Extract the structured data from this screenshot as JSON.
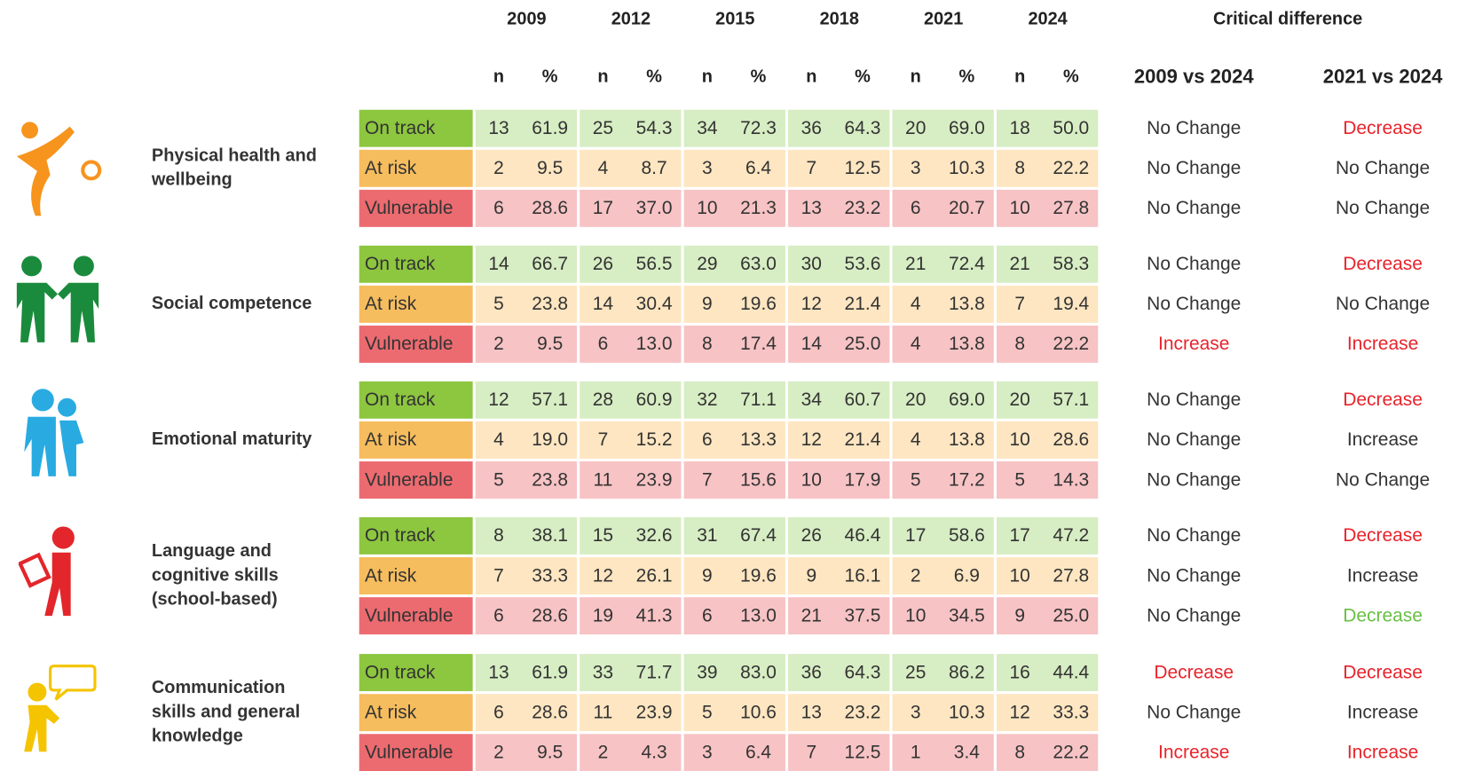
{
  "header": {
    "years": [
      "2009",
      "2012",
      "2015",
      "2018",
      "2021",
      "2024"
    ],
    "subheaders": [
      "n",
      "%"
    ],
    "critical_difference": "Critical difference",
    "comparisons": [
      "2009 vs 2024",
      "2021 vs 2024"
    ]
  },
  "domains": [
    {
      "name": "Physical health and\nwellbeing",
      "rows": [
        {
          "status": "On track",
          "values": [
            "13",
            "61.9",
            "25",
            "54.3",
            "34",
            "72.3",
            "36",
            "64.3",
            "20",
            "69.0",
            "18",
            "50.0"
          ],
          "diffs": [
            {
              "text": "No Change",
              "color": "#333333"
            },
            {
              "text": "Decrease",
              "color": "#e8232b"
            }
          ]
        },
        {
          "status": "At risk",
          "values": [
            "2",
            "9.5",
            "4",
            "8.7",
            "3",
            "6.4",
            "7",
            "12.5",
            "3",
            "10.3",
            "8",
            "22.2"
          ],
          "diffs": [
            {
              "text": "No Change",
              "color": "#333333"
            },
            {
              "text": "No Change",
              "color": "#333333"
            }
          ]
        },
        {
          "status": "Vulnerable",
          "values": [
            "6",
            "28.6",
            "17",
            "37.0",
            "10",
            "21.3",
            "13",
            "23.2",
            "6",
            "20.7",
            "10",
            "27.8"
          ],
          "diffs": [
            {
              "text": "No Change",
              "color": "#333333"
            },
            {
              "text": "No Change",
              "color": "#333333"
            }
          ]
        }
      ]
    },
    {
      "name": "Social competence",
      "rows": [
        {
          "status": "On track",
          "values": [
            "14",
            "66.7",
            "26",
            "56.5",
            "29",
            "63.0",
            "30",
            "53.6",
            "21",
            "72.4",
            "21",
            "58.3"
          ],
          "diffs": [
            {
              "text": "No Change",
              "color": "#333333"
            },
            {
              "text": "Decrease",
              "color": "#e8232b"
            }
          ]
        },
        {
          "status": "At risk",
          "values": [
            "5",
            "23.8",
            "14",
            "30.4",
            "9",
            "19.6",
            "12",
            "21.4",
            "4",
            "13.8",
            "7",
            "19.4"
          ],
          "diffs": [
            {
              "text": "No Change",
              "color": "#333333"
            },
            {
              "text": "No Change",
              "color": "#333333"
            }
          ]
        },
        {
          "status": "Vulnerable",
          "values": [
            "2",
            "9.5",
            "6",
            "13.0",
            "8",
            "17.4",
            "14",
            "25.0",
            "4",
            "13.8",
            "8",
            "22.2"
          ],
          "diffs": [
            {
              "text": "Increase",
              "color": "#e8232b"
            },
            {
              "text": "Increase",
              "color": "#e8232b"
            }
          ]
        }
      ]
    },
    {
      "name": "Emotional maturity",
      "rows": [
        {
          "status": "On track",
          "values": [
            "12",
            "57.1",
            "28",
            "60.9",
            "32",
            "71.1",
            "34",
            "60.7",
            "20",
            "69.0",
            "20",
            "57.1"
          ],
          "diffs": [
            {
              "text": "No Change",
              "color": "#333333"
            },
            {
              "text": "Decrease",
              "color": "#e8232b"
            }
          ]
        },
        {
          "status": "At risk",
          "values": [
            "4",
            "19.0",
            "7",
            "15.2",
            "6",
            "13.3",
            "12",
            "21.4",
            "4",
            "13.8",
            "10",
            "28.6"
          ],
          "diffs": [
            {
              "text": "No Change",
              "color": "#333333"
            },
            {
              "text": "Increase",
              "color": "#333333"
            }
          ]
        },
        {
          "status": "Vulnerable",
          "values": [
            "5",
            "23.8",
            "11",
            "23.9",
            "7",
            "15.6",
            "10",
            "17.9",
            "5",
            "17.2",
            "5",
            "14.3"
          ],
          "diffs": [
            {
              "text": "No Change",
              "color": "#333333"
            },
            {
              "text": "No Change",
              "color": "#333333"
            }
          ]
        }
      ]
    },
    {
      "name": "Language and\ncognitive skills\n(school-based)",
      "rows": [
        {
          "status": "On track",
          "values": [
            "8",
            "38.1",
            "15",
            "32.6",
            "31",
            "67.4",
            "26",
            "46.4",
            "17",
            "58.6",
            "17",
            "47.2"
          ],
          "diffs": [
            {
              "text": "No Change",
              "color": "#333333"
            },
            {
              "text": "Decrease",
              "color": "#e8232b"
            }
          ]
        },
        {
          "status": "At risk",
          "values": [
            "7",
            "33.3",
            "12",
            "26.1",
            "9",
            "19.6",
            "9",
            "16.1",
            "2",
            "6.9",
            "10",
            "27.8"
          ],
          "diffs": [
            {
              "text": "No Change",
              "color": "#333333"
            },
            {
              "text": "Increase",
              "color": "#333333"
            }
          ]
        },
        {
          "status": "Vulnerable",
          "values": [
            "6",
            "28.6",
            "19",
            "41.3",
            "6",
            "13.0",
            "21",
            "37.5",
            "10",
            "34.5",
            "9",
            "25.0"
          ],
          "diffs": [
            {
              "text": "No Change",
              "color": "#333333"
            },
            {
              "text": "Decrease",
              "color": "#6abf45"
            }
          ]
        }
      ]
    },
    {
      "name": "Communication\nskills and general\nknowledge",
      "rows": [
        {
          "status": "On track",
          "values": [
            "13",
            "61.9",
            "33",
            "71.7",
            "39",
            "83.0",
            "36",
            "64.3",
            "25",
            "86.2",
            "16",
            "44.4"
          ],
          "diffs": [
            {
              "text": "Decrease",
              "color": "#e8232b"
            },
            {
              "text": "Decrease",
              "color": "#e8232b"
            }
          ]
        },
        {
          "status": "At risk",
          "values": [
            "6",
            "28.6",
            "11",
            "23.9",
            "5",
            "10.6",
            "13",
            "23.2",
            "3",
            "10.3",
            "12",
            "33.3"
          ],
          "diffs": [
            {
              "text": "No Change",
              "color": "#333333"
            },
            {
              "text": "Increase",
              "color": "#333333"
            }
          ]
        },
        {
          "status": "Vulnerable",
          "values": [
            "2",
            "9.5",
            "2",
            "4.3",
            "3",
            "6.4",
            "7",
            "12.5",
            "1",
            "3.4",
            "8",
            "22.2"
          ],
          "diffs": [
            {
              "text": "Increase",
              "color": "#e8232b"
            },
            {
              "text": "Increase",
              "color": "#e8232b"
            }
          ]
        }
      ]
    }
  ]
}
